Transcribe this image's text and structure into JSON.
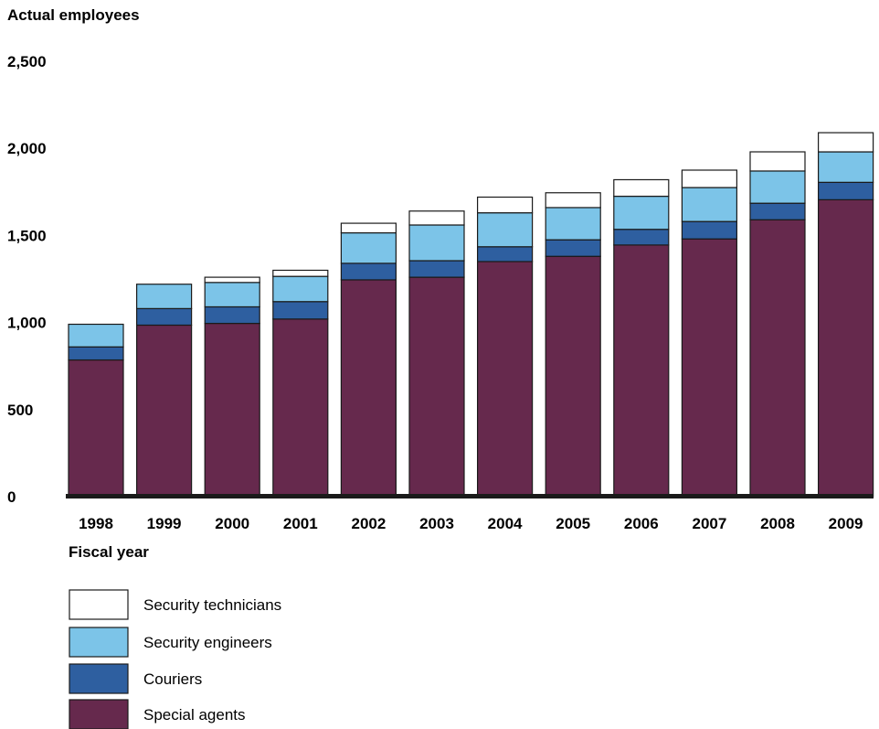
{
  "chart_data": {
    "type": "bar",
    "stacked": true,
    "ylabel": "Actual employees",
    "xlabel": "Fiscal year",
    "ylim": [
      0,
      2500
    ],
    "yticks": [
      "0",
      "500",
      "1,000",
      "1,500",
      "2,000",
      "2,500"
    ],
    "ytick_values": [
      0,
      500,
      1000,
      1500,
      2000,
      2500
    ],
    "grid": false,
    "legend_placement": "bottom-left",
    "categories": [
      "1998",
      "1999",
      "2000",
      "2001",
      "2002",
      "2003",
      "2004",
      "2005",
      "2006",
      "2007",
      "2008",
      "2009"
    ],
    "series": [
      {
        "name": "Special agents",
        "color": "#66294d",
        "values": [
          785,
          985,
          995,
          1020,
          1245,
          1260,
          1350,
          1380,
          1445,
          1480,
          1590,
          1705
        ]
      },
      {
        "name": "Couriers",
        "color": "#2e5fa0",
        "values": [
          75,
          95,
          95,
          100,
          95,
          95,
          85,
          95,
          90,
          100,
          95,
          100
        ]
      },
      {
        "name": "Security engineers",
        "color": "#7cc4e8",
        "values": [
          130,
          140,
          140,
          145,
          175,
          205,
          195,
          185,
          190,
          195,
          185,
          175
        ]
      },
      {
        "name": "Security technicians",
        "color": "#ffffff",
        "values": [
          0,
          0,
          30,
          35,
          55,
          80,
          90,
          85,
          95,
          100,
          110,
          110
        ]
      }
    ]
  },
  "legend_order": [
    3,
    2,
    1,
    0
  ]
}
